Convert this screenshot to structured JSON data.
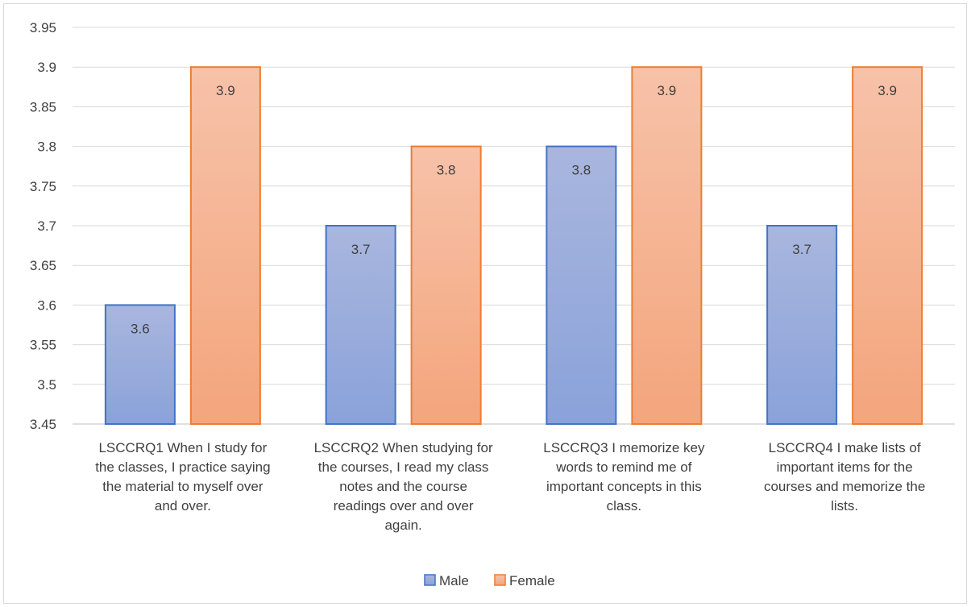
{
  "chart_data": {
    "type": "bar",
    "categories": [
      [
        "LSCCRQ1 When I study for",
        "the classes, I practice saying",
        "the material to myself over",
        "and over."
      ],
      [
        "LSCCRQ2 When studying for",
        "the courses, I read my class",
        "notes and the course",
        "readings over and over",
        "again."
      ],
      [
        "LSCCRQ3 I memorize key",
        "words to remind me of",
        "important concepts in this",
        "class."
      ],
      [
        "LSCCRQ4 I make lists of",
        "important items for the",
        "courses and memorize the",
        "lists."
      ]
    ],
    "series": [
      {
        "name": "Male",
        "values": [
          3.6,
          3.7,
          3.8,
          3.7
        ],
        "labels": [
          "3.6",
          "3.7",
          "3.8",
          "3.7"
        ],
        "fill_top": "#a9b6de",
        "fill_bottom": "#8aa2da",
        "stroke": "#4472c4"
      },
      {
        "name": "Female",
        "values": [
          3.9,
          3.8,
          3.9,
          3.9
        ],
        "labels": [
          "3.9",
          "3.8",
          "3.9",
          "3.9"
        ],
        "fill_top": "#f7c2a9",
        "fill_bottom": "#f4a57c",
        "stroke": "#ed7d31"
      }
    ],
    "y_ticks": [
      "3.45",
      "3.5",
      "3.55",
      "3.6",
      "3.65",
      "3.7",
      "3.75",
      "3.8",
      "3.85",
      "3.9",
      "3.95"
    ],
    "ylim": [
      3.45,
      3.95
    ],
    "grid": true,
    "legend_position": "bottom",
    "title": "",
    "xlabel": "",
    "ylabel": ""
  }
}
